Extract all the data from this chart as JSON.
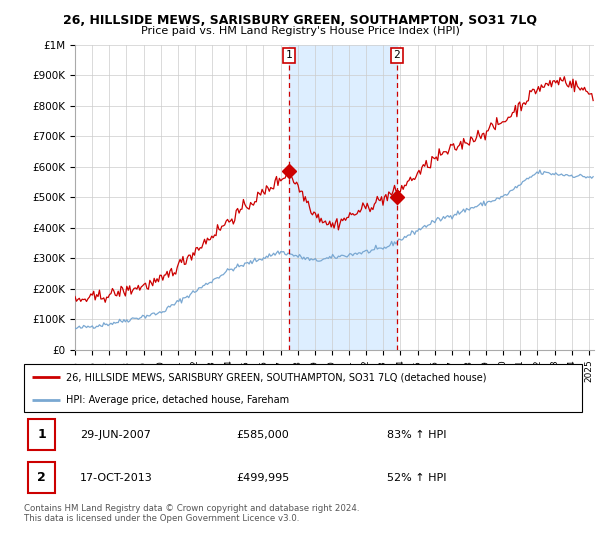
{
  "title": "26, HILLSIDE MEWS, SARISBURY GREEN, SOUTHAMPTON, SO31 7LQ",
  "subtitle": "Price paid vs. HM Land Registry's House Price Index (HPI)",
  "sale1_label": "29-JUN-2007",
  "sale1_price": 585000,
  "sale1_pct": "83% ↑ HPI",
  "sale2_label": "17-OCT-2013",
  "sale2_price": 499995,
  "sale2_pct": "52% ↑ HPI",
  "legend_line1": "26, HILLSIDE MEWS, SARISBURY GREEN, SOUTHAMPTON, SO31 7LQ (detached house)",
  "legend_line2": "HPI: Average price, detached house, Fareham",
  "footnote": "Contains HM Land Registry data © Crown copyright and database right 2024.\nThis data is licensed under the Open Government Licence v3.0.",
  "line1_color": "#cc0000",
  "line2_color": "#7aa8d2",
  "shaded_color": "#ddeeff",
  "vline_color": "#cc0000",
  "sale1_x": 2007.495,
  "sale2_x": 2013.79,
  "sale1_y": 585000,
  "sale2_y": 499995,
  "ylim": [
    0,
    1000000
  ],
  "xlim": [
    1995,
    2025.3
  ],
  "yticks": [
    0,
    100000,
    200000,
    300000,
    400000,
    500000,
    600000,
    700000,
    800000,
    900000,
    1000000
  ],
  "ytick_labels": [
    "£0",
    "£100K",
    "£200K",
    "£300K",
    "£400K",
    "£500K",
    "£600K",
    "£700K",
    "£800K",
    "£900K",
    "£1M"
  ]
}
